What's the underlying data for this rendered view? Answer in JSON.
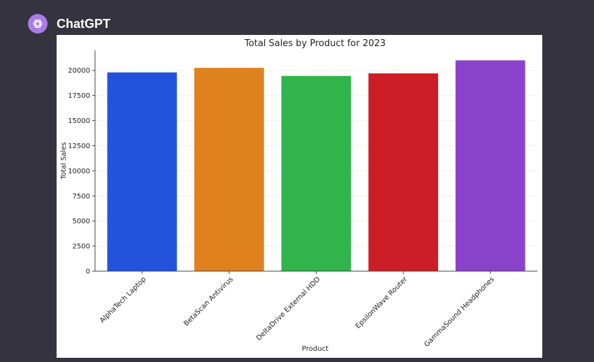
{
  "app": {
    "name": "ChatGPT",
    "avatar_icon": "openai-logo-icon",
    "avatar_color": "#a97de6"
  },
  "chart_data": {
    "type": "bar",
    "title": "Total Sales by Product for 2023",
    "xlabel": "Product",
    "ylabel": "Total Sales",
    "categories": [
      "AlphaTech Laptop",
      "BetaScan Antivirus",
      "DeltaDrive External HDD",
      "EpsilonWave Router",
      "GammaSound Headphones"
    ],
    "values": [
      19800,
      20250,
      19450,
      19700,
      21000
    ],
    "colors": [
      "#2352dc",
      "#e0811f",
      "#31b44b",
      "#cc1e26",
      "#8a42cb"
    ],
    "ylim": [
      0,
      22000
    ],
    "yticks": [
      0,
      2500,
      5000,
      7500,
      10000,
      12500,
      15000,
      17500,
      20000
    ],
    "grid": true
  }
}
